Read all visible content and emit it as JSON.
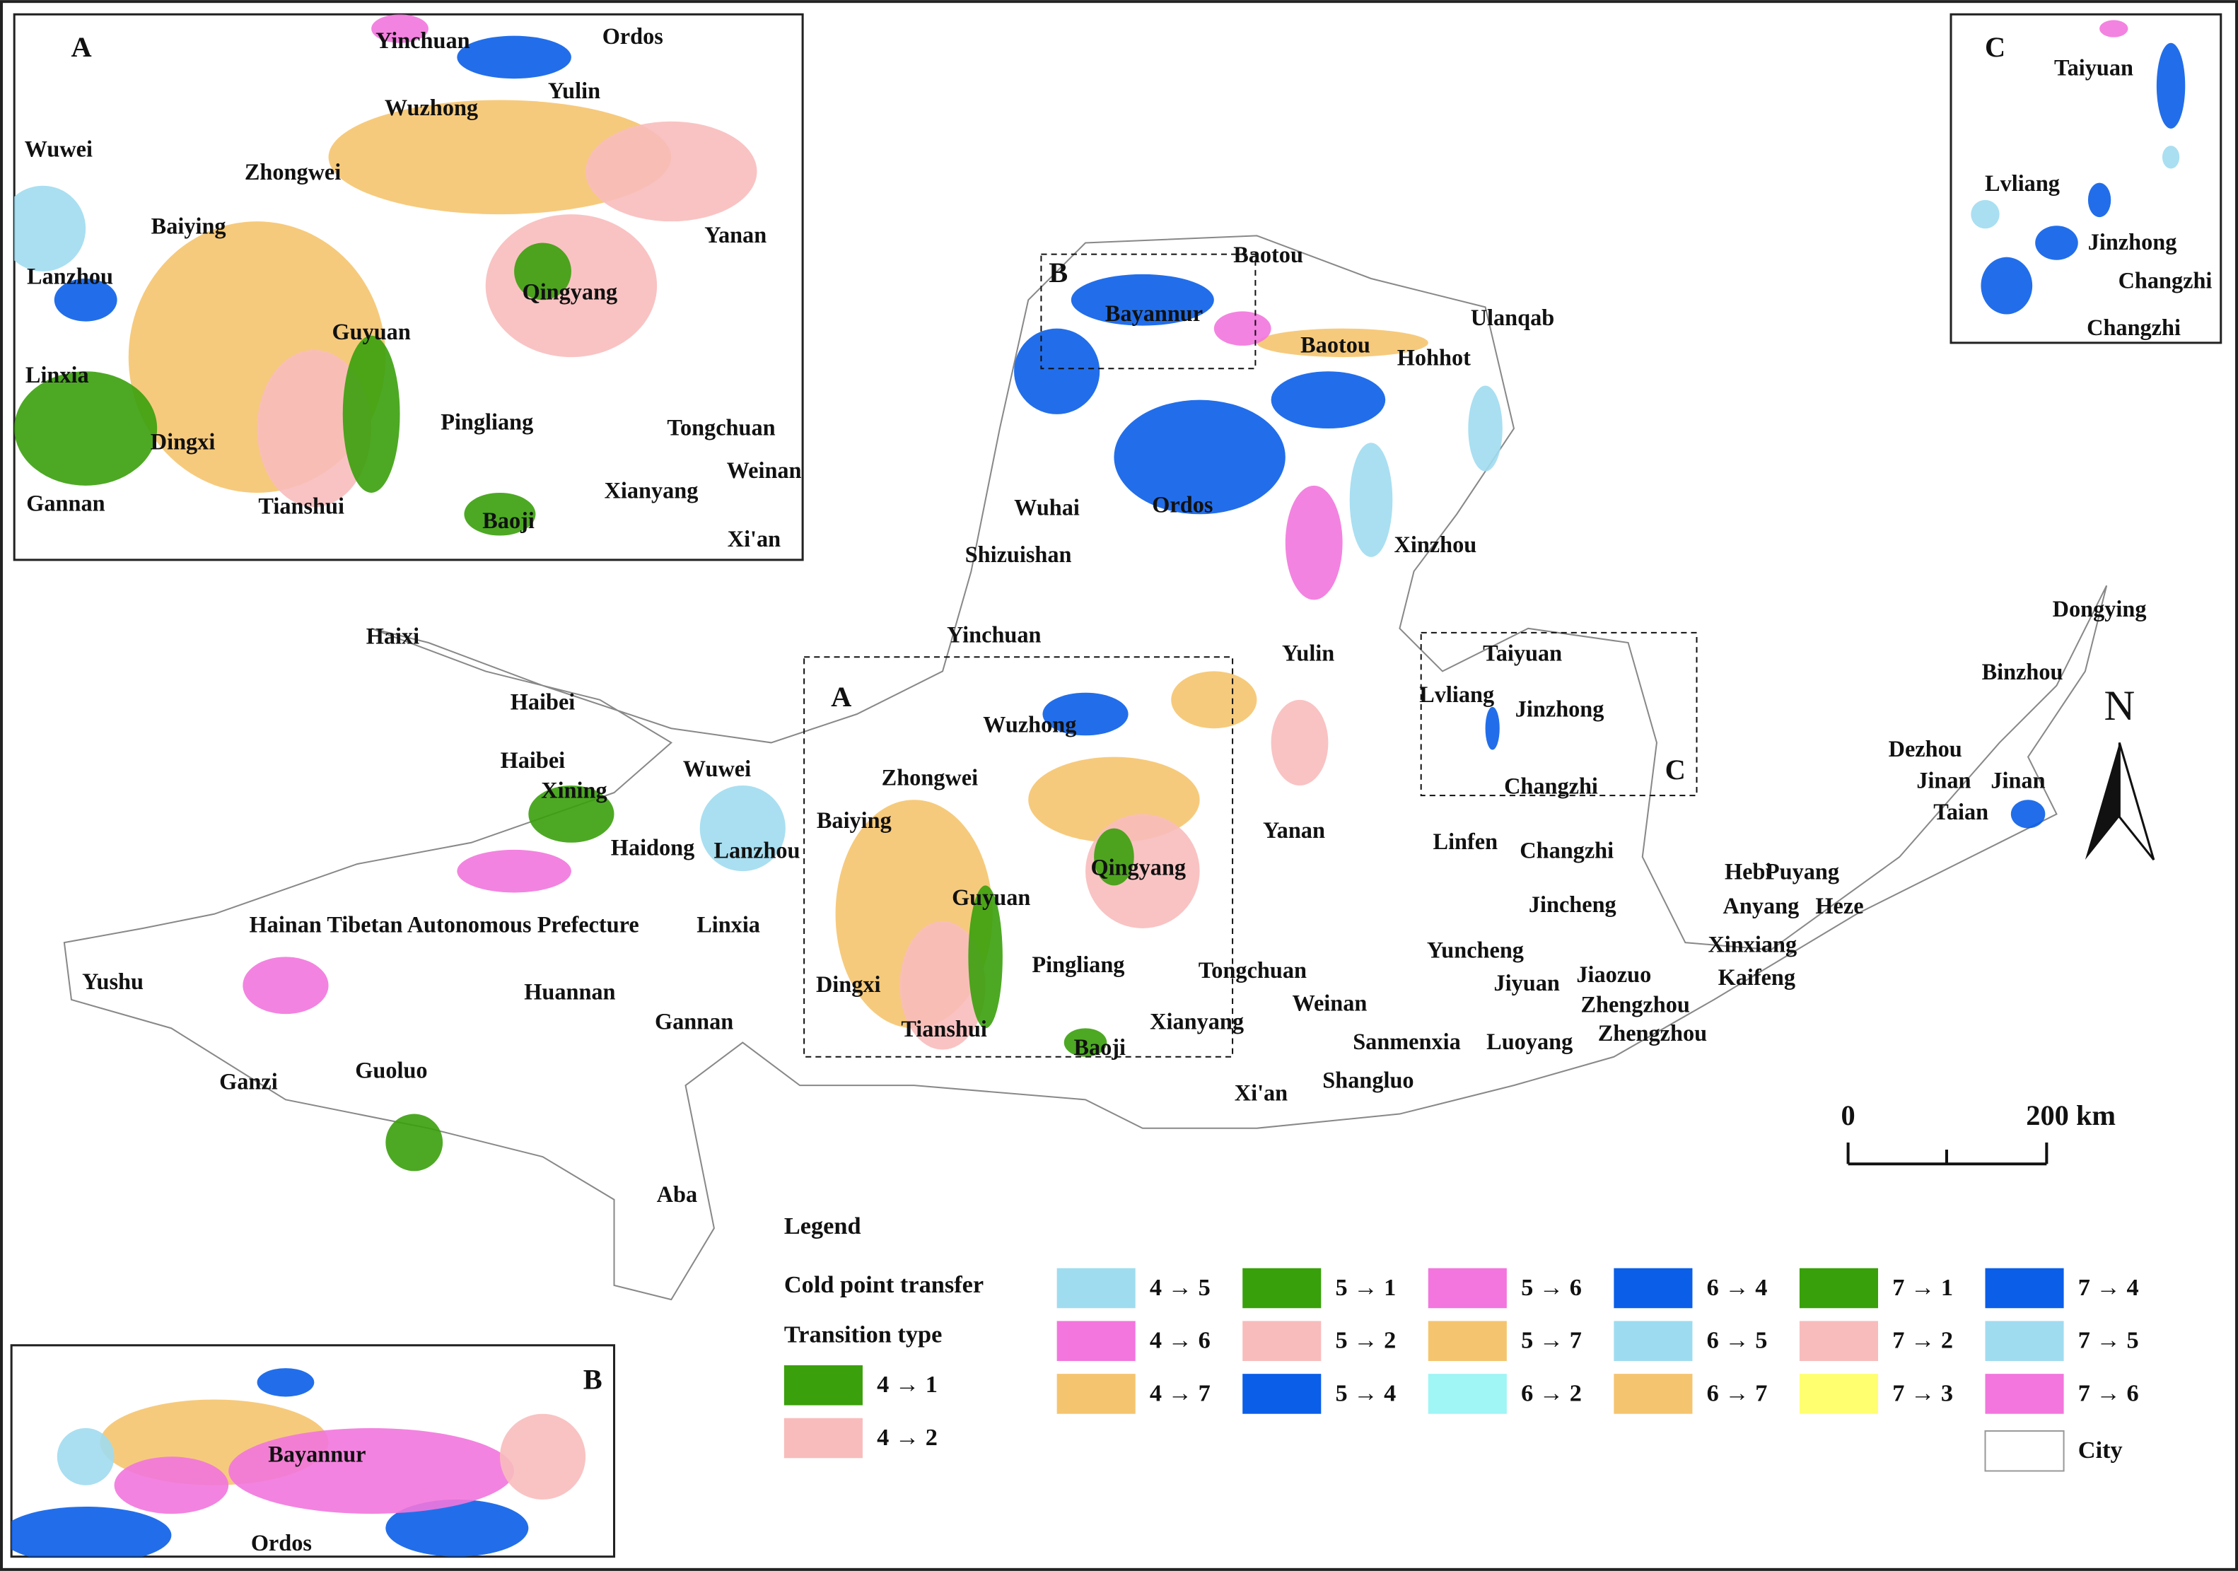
{
  "main_map": {
    "labels": [
      "Baotou",
      "Bayannur",
      "Baotou",
      "Hohhot",
      "Ulanqab",
      "Wuhai",
      "Ordos",
      "Shizuishan",
      "Xinzhou",
      "Yinchuan",
      "Haixi",
      "Yulin",
      "Dongying",
      "Binzhou",
      "Taiyuan",
      "Lvliang",
      "Jinzhong",
      "Haibei",
      "Haibei",
      "Wuzhong",
      "Xining",
      "Wuwei",
      "Zhongwei",
      "Changzhi",
      "Dezhou",
      "Jinan",
      "Jinan",
      "Taian",
      "Baiying",
      "Yanan",
      "Linfen",
      "Changzhi",
      "Haidong",
      "Lanzhou",
      "Qingyang",
      "Hebi",
      "Puyang",
      "Anyang",
      "Heze",
      "Guyuan",
      "Jincheng",
      "Hainan Tibetan Autonomous Prefecture",
      "Linxia",
      "Xinxiang",
      "Yushu",
      "Huannan",
      "Dingxi",
      "Pingliang",
      "Tongchuan",
      "Yuncheng",
      "Jiaozuo",
      "Kaifeng",
      "Jiyuan",
      "Weinan",
      "Gannan",
      "Tianshui",
      "Xianyang",
      "Zhengzhou",
      "Zhengzhou",
      "Sanmenxia",
      "Luoyang",
      "Guoluo",
      "Ganzi",
      "Baoji",
      "Xi'an",
      "Shangluo",
      "Aba"
    ],
    "box_letters": [
      "A",
      "B",
      "C"
    ]
  },
  "inset_a": {
    "letter": "A",
    "labels": [
      "Yinchuan",
      "Ordos",
      "Wuzhong",
      "Yulin",
      "Wuwei",
      "Zhongwei",
      "Baiying",
      "Yanan",
      "Lanzhou",
      "Qingyang",
      "Guyuan",
      "Linxia",
      "Pingliang",
      "Tongchuan",
      "Dingxi",
      "Weinan",
      "Xianyang",
      "Gannan",
      "Tianshui",
      "Baoji",
      "Xi'an"
    ]
  },
  "inset_b": {
    "letter": "B",
    "labels": [
      "Bayannur",
      "Ordos"
    ]
  },
  "inset_c": {
    "letter": "C",
    "labels": [
      "Taiyuan",
      "Lvliang",
      "Jinzhong",
      "Changzhi",
      "Changzhi"
    ]
  },
  "scale_bar": {
    "labels": [
      "0",
      "200 km"
    ]
  },
  "north_arrow": "N",
  "legend": {
    "title": "Legend",
    "group_title": "Cold point transfer",
    "subtitle": "Transition type",
    "items": [
      {
        "label": "4 → 1",
        "color": "#3aa00c"
      },
      {
        "label": "4 → 2",
        "color": "#f8bcbc"
      },
      {
        "label": "4 → 5",
        "color": "#a0dcf0"
      },
      {
        "label": "4 → 6",
        "color": "#f276dd"
      },
      {
        "label": "4 → 7",
        "color": "#f5c46e"
      },
      {
        "label": "5 → 1",
        "color": "#38a00b"
      },
      {
        "label": "5 → 2",
        "color": "#f8bcbc"
      },
      {
        "label": "5 → 4",
        "color": "#0a5ee8"
      },
      {
        "label": "5 → 6",
        "color": "#f276dd"
      },
      {
        "label": "5 → 7",
        "color": "#f5c46e"
      },
      {
        "label": "6 → 2",
        "color": "#a0f5f5"
      },
      {
        "label": "6 → 4",
        "color": "#0a5ee8"
      },
      {
        "label": "6 → 5",
        "color": "#9ddcf0"
      },
      {
        "label": "6 → 7",
        "color": "#f5c46e"
      },
      {
        "label": "7 → 1",
        "color": "#38a00b"
      },
      {
        "label": "7 → 2",
        "color": "#f8bcbc"
      },
      {
        "label": "7 → 3",
        "color": "#ffff70"
      },
      {
        "label": "7 → 4",
        "color": "#0a5ee8"
      },
      {
        "label": "7 → 5",
        "color": "#a0dcf0"
      },
      {
        "label": "7 → 6",
        "color": "#f276dd"
      }
    ],
    "city": "City"
  }
}
